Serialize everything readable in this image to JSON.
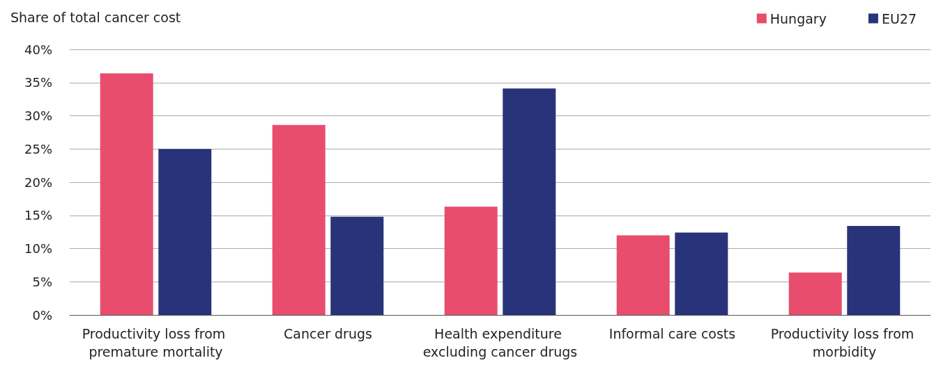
{
  "chart_data": {
    "type": "bar",
    "ylabel": "Share of total cancer cost",
    "categories": [
      "Productivity loss from premature mortality",
      "Cancer drugs",
      "Health expenditure excluding cancer drugs",
      "Informal care costs",
      "Productivity loss from morbidity"
    ],
    "series": [
      {
        "name": "Hungary",
        "color": "#e84d6e",
        "values": [
          36.4,
          28.6,
          16.3,
          12.0,
          6.4
        ]
      },
      {
        "name": "EU27",
        "color": "#29337a",
        "values": [
          25.0,
          14.8,
          34.1,
          12.4,
          13.4
        ]
      }
    ],
    "ylim": [
      0,
      40
    ],
    "yticks": [
      {
        "value": 0,
        "label": "0%"
      },
      {
        "value": 5,
        "label": "5%"
      },
      {
        "value": 10,
        "label": "10%"
      },
      {
        "value": 15,
        "label": "15%"
      },
      {
        "value": 20,
        "label": "20%"
      },
      {
        "value": 25,
        "label": "25%"
      },
      {
        "value": 30,
        "label": "30%"
      },
      {
        "value": 35,
        "label": "35%"
      },
      {
        "value": 40,
        "label": "40%"
      }
    ],
    "grid": "y",
    "legend": "top right"
  }
}
